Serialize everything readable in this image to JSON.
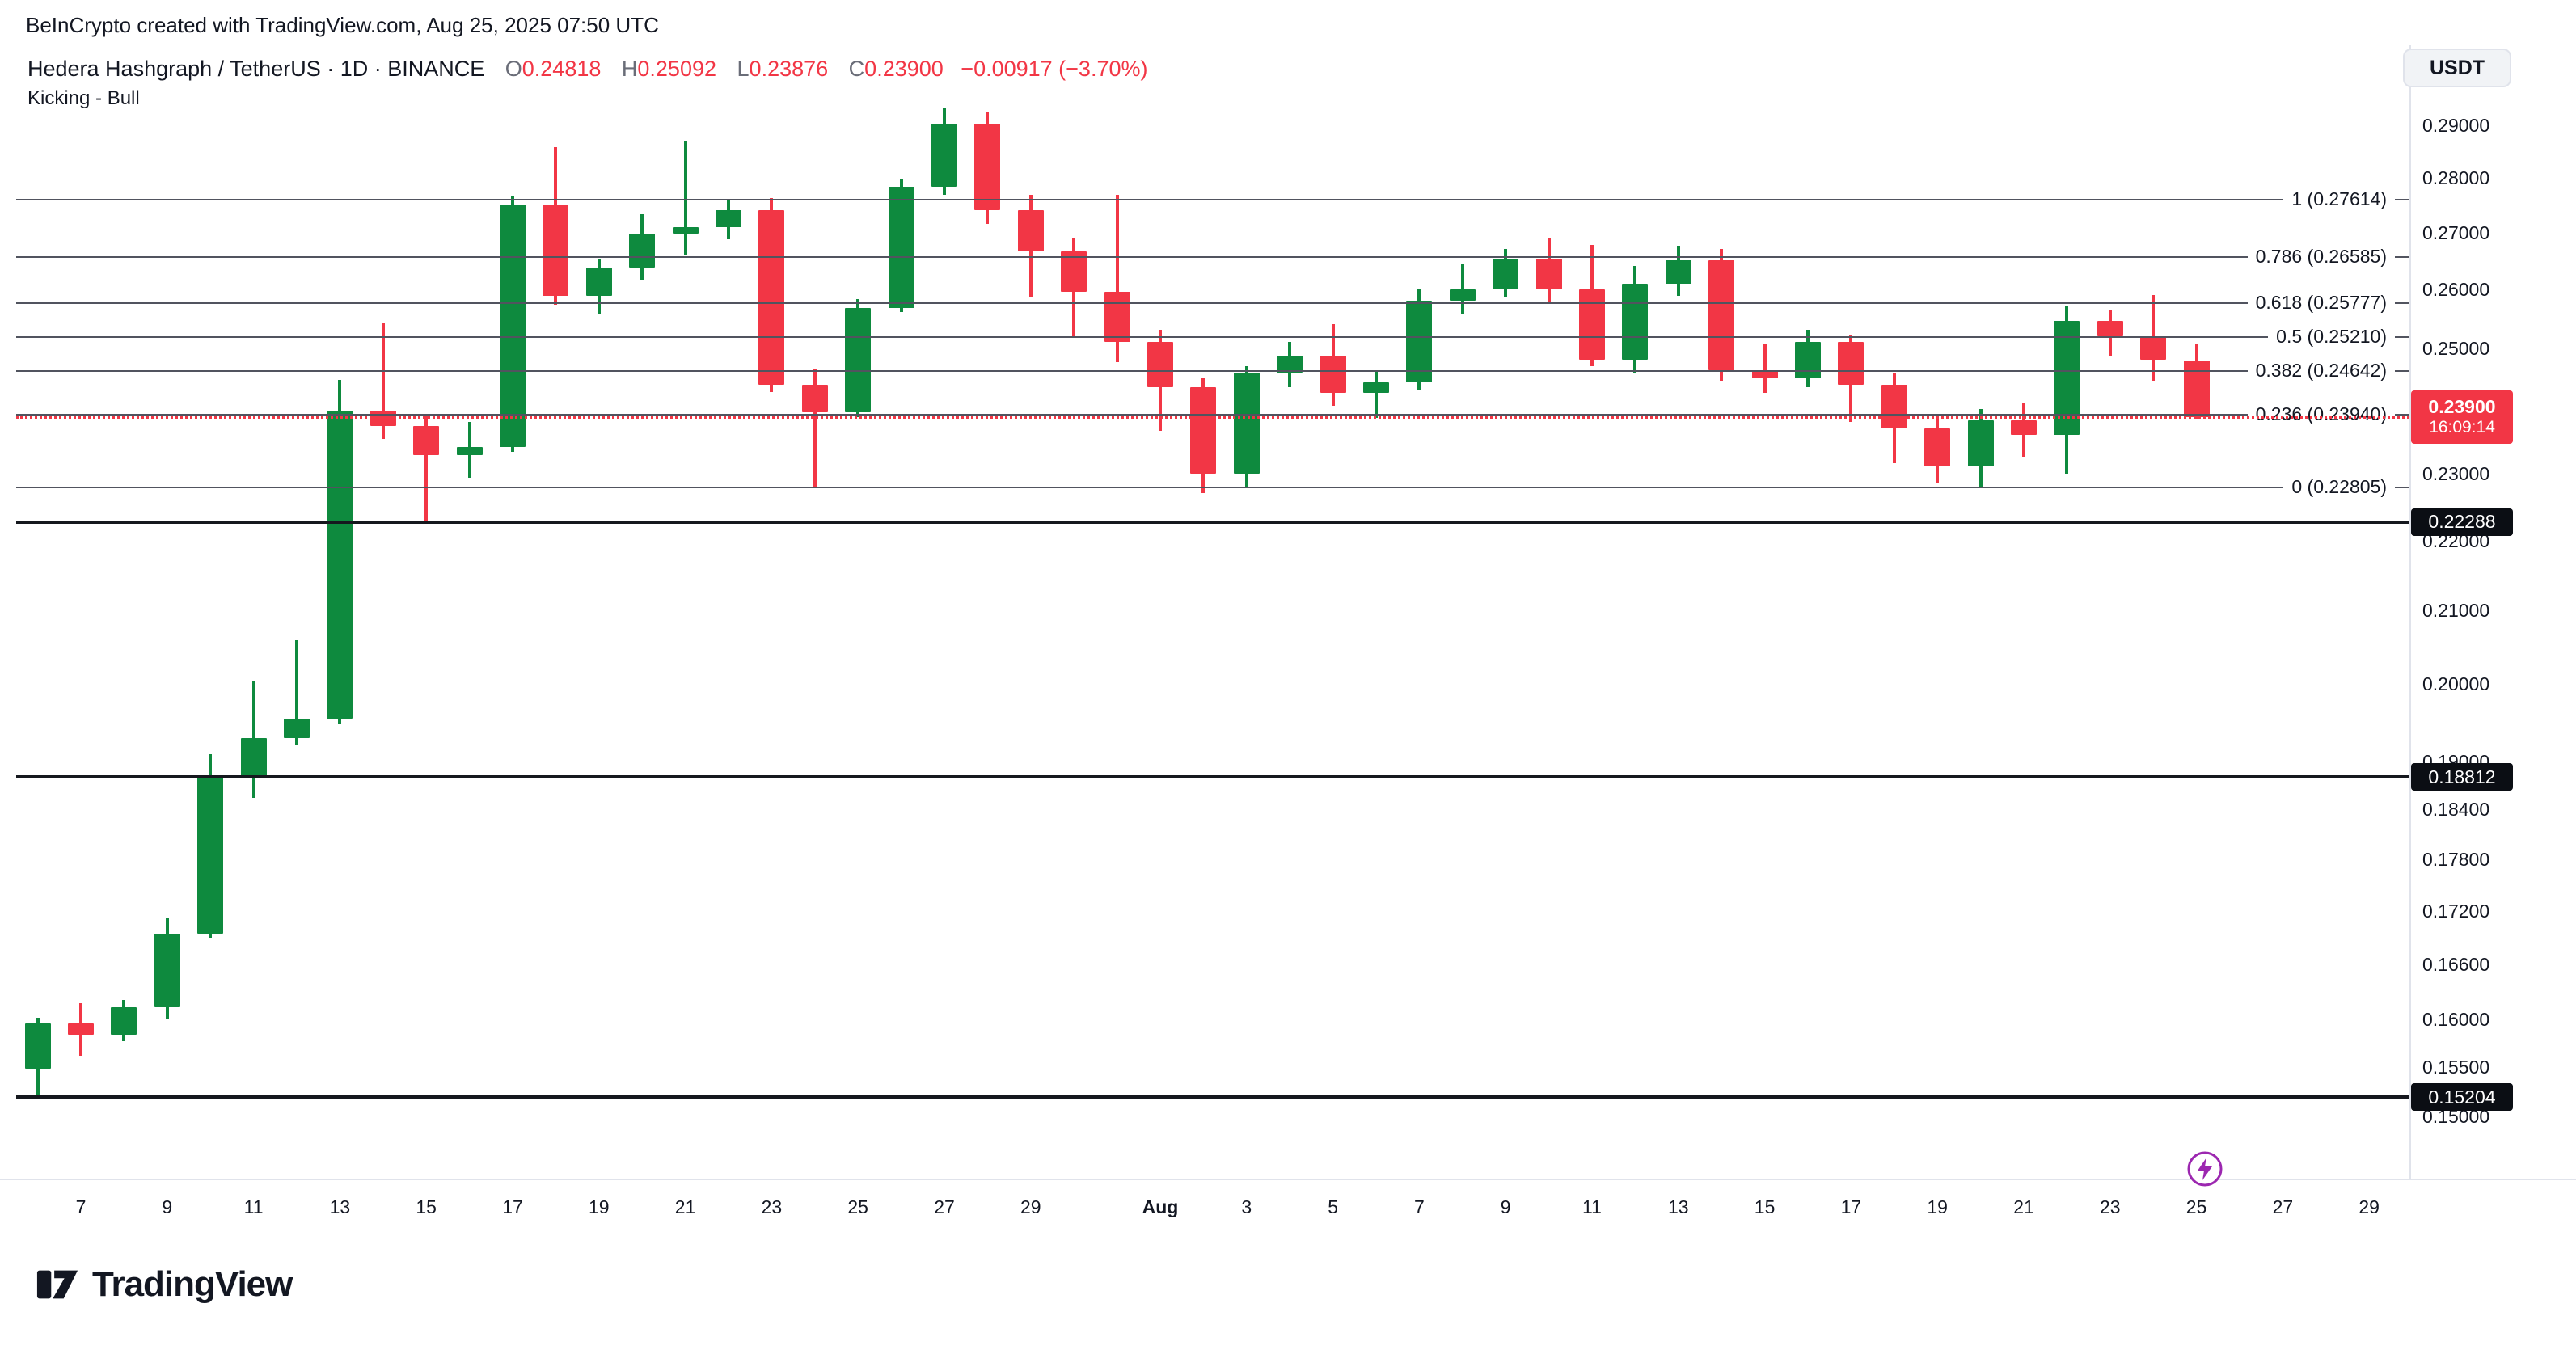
{
  "top_bar": {
    "attribution": "BeInCrypto created with TradingView.com, Aug 25, 2025 07:50 UTC"
  },
  "header": {
    "symbol_line": "Hedera Hashgraph / TetherUS · 1D · BINANCE",
    "ohlc": {
      "o_label": "O",
      "o": "0.24818",
      "h_label": "H",
      "h": "0.25092",
      "l_label": "L",
      "l": "0.23876",
      "c_label": "C",
      "c": "0.23900",
      "change": "−0.00917 (−3.70%)"
    },
    "pattern_label": "Kicking - Bull",
    "currency_button": "USDT"
  },
  "footer": {
    "brand": "TradingView"
  },
  "chart_data": {
    "type": "candlestick",
    "title": "Hedera Hashgraph / TetherUS 1D BINANCE",
    "interval": "1D",
    "scale": "log",
    "price_range_approx": [
      0.148,
      0.296
    ],
    "colors": {
      "up": "#0e8a3e",
      "down": "#f23645",
      "last_price": "#f23645",
      "support": "#15181e",
      "fib": "#51545f",
      "marker": "#9c27b0"
    },
    "candles": [
      {
        "d": "Jul 6",
        "o": 0.1549,
        "h": 0.1603,
        "l": 0.1521,
        "c": 0.1597
      },
      {
        "d": "Jul 7",
        "o": 0.1597,
        "h": 0.1618,
        "l": 0.1563,
        "c": 0.1585
      },
      {
        "d": "Jul 8",
        "o": 0.1585,
        "h": 0.1622,
        "l": 0.1578,
        "c": 0.1614
      },
      {
        "d": "Jul 9",
        "o": 0.1614,
        "h": 0.1712,
        "l": 0.1602,
        "c": 0.1695
      },
      {
        "d": "Jul 10",
        "o": 0.1695,
        "h": 0.191,
        "l": 0.169,
        "c": 0.188
      },
      {
        "d": "Jul 11",
        "o": 0.188,
        "h": 0.2005,
        "l": 0.1855,
        "c": 0.193
      },
      {
        "d": "Jul 12",
        "o": 0.193,
        "h": 0.206,
        "l": 0.1922,
        "c": 0.1955
      },
      {
        "d": "Jul 13",
        "o": 0.1955,
        "h": 0.245,
        "l": 0.1948,
        "c": 0.24
      },
      {
        "d": "Jul 14",
        "o": 0.24,
        "h": 0.2545,
        "l": 0.2355,
        "c": 0.2375
      },
      {
        "d": "Jul 15",
        "o": 0.2375,
        "h": 0.2392,
        "l": 0.223,
        "c": 0.233
      },
      {
        "d": "Jul 16",
        "o": 0.233,
        "h": 0.2382,
        "l": 0.2295,
        "c": 0.2342
      },
      {
        "d": "Jul 17",
        "o": 0.2342,
        "h": 0.2768,
        "l": 0.2335,
        "c": 0.2752
      },
      {
        "d": "Jul 18",
        "o": 0.2752,
        "h": 0.286,
        "l": 0.2575,
        "c": 0.259
      },
      {
        "d": "Jul 19",
        "o": 0.259,
        "h": 0.2655,
        "l": 0.256,
        "c": 0.264
      },
      {
        "d": "Jul 20",
        "o": 0.264,
        "h": 0.2735,
        "l": 0.2618,
        "c": 0.27
      },
      {
        "d": "Jul 21",
        "o": 0.27,
        "h": 0.287,
        "l": 0.2662,
        "c": 0.2712
      },
      {
        "d": "Jul 22",
        "o": 0.2712,
        "h": 0.2762,
        "l": 0.269,
        "c": 0.2742
      },
      {
        "d": "Jul 23",
        "o": 0.2742,
        "h": 0.2765,
        "l": 0.243,
        "c": 0.2442
      },
      {
        "d": "Jul 24",
        "o": 0.2442,
        "h": 0.2468,
        "l": 0.2282,
        "c": 0.2398
      },
      {
        "d": "Jul 25",
        "o": 0.2398,
        "h": 0.2585,
        "l": 0.239,
        "c": 0.257
      },
      {
        "d": "Jul 26",
        "o": 0.257,
        "h": 0.28,
        "l": 0.2562,
        "c": 0.2786
      },
      {
        "d": "Jul 27",
        "o": 0.2786,
        "h": 0.2935,
        "l": 0.277,
        "c": 0.2905
      },
      {
        "d": "Jul 28",
        "o": 0.2905,
        "h": 0.2928,
        "l": 0.2718,
        "c": 0.2742
      },
      {
        "d": "Jul 29",
        "o": 0.2742,
        "h": 0.277,
        "l": 0.2588,
        "c": 0.2668
      },
      {
        "d": "Jul 30",
        "o": 0.2668,
        "h": 0.2692,
        "l": 0.2522,
        "c": 0.2598
      },
      {
        "d": "Jul 31",
        "o": 0.2598,
        "h": 0.277,
        "l": 0.2478,
        "c": 0.2512
      },
      {
        "d": "Aug 1",
        "o": 0.2512,
        "h": 0.2532,
        "l": 0.2368,
        "c": 0.2438
      },
      {
        "d": "Aug 2",
        "o": 0.2438,
        "h": 0.2452,
        "l": 0.2272,
        "c": 0.2302
      },
      {
        "d": "Aug 3",
        "o": 0.2302,
        "h": 0.2472,
        "l": 0.2281,
        "c": 0.2462
      },
      {
        "d": "Aug 4",
        "o": 0.2462,
        "h": 0.2512,
        "l": 0.2438,
        "c": 0.249
      },
      {
        "d": "Aug 5",
        "o": 0.249,
        "h": 0.2542,
        "l": 0.2408,
        "c": 0.2428
      },
      {
        "d": "Aug 6",
        "o": 0.2428,
        "h": 0.2465,
        "l": 0.2388,
        "c": 0.2445
      },
      {
        "d": "Aug 7",
        "o": 0.2445,
        "h": 0.2602,
        "l": 0.2432,
        "c": 0.2582
      },
      {
        "d": "Aug 8",
        "o": 0.2582,
        "h": 0.2645,
        "l": 0.2558,
        "c": 0.2602
      },
      {
        "d": "Aug 9",
        "o": 0.2602,
        "h": 0.2672,
        "l": 0.2588,
        "c": 0.2655
      },
      {
        "d": "Aug 10",
        "o": 0.2655,
        "h": 0.2692,
        "l": 0.2578,
        "c": 0.2602
      },
      {
        "d": "Aug 11",
        "o": 0.2602,
        "h": 0.268,
        "l": 0.2472,
        "c": 0.2482
      },
      {
        "d": "Aug 12",
        "o": 0.2482,
        "h": 0.2642,
        "l": 0.2462,
        "c": 0.2612
      },
      {
        "d": "Aug 13",
        "o": 0.2612,
        "h": 0.2678,
        "l": 0.259,
        "c": 0.2652
      },
      {
        "d": "Aug 14",
        "o": 0.2652,
        "h": 0.2672,
        "l": 0.2448,
        "c": 0.2465
      },
      {
        "d": "Aug 15",
        "o": 0.2465,
        "h": 0.2508,
        "l": 0.2428,
        "c": 0.2452
      },
      {
        "d": "Aug 16",
        "o": 0.2452,
        "h": 0.2532,
        "l": 0.2438,
        "c": 0.2512
      },
      {
        "d": "Aug 17",
        "o": 0.2512,
        "h": 0.2525,
        "l": 0.2382,
        "c": 0.2442
      },
      {
        "d": "Aug 18",
        "o": 0.2442,
        "h": 0.2462,
        "l": 0.2318,
        "c": 0.2372
      },
      {
        "d": "Aug 19",
        "o": 0.2372,
        "h": 0.2392,
        "l": 0.2288,
        "c": 0.2312
      },
      {
        "d": "Aug 20",
        "o": 0.2312,
        "h": 0.2402,
        "l": 0.2282,
        "c": 0.2385
      },
      {
        "d": "Aug 21",
        "o": 0.2385,
        "h": 0.2412,
        "l": 0.2328,
        "c": 0.2362
      },
      {
        "d": "Aug 22",
        "o": 0.2362,
        "h": 0.2572,
        "l": 0.2302,
        "c": 0.2548
      },
      {
        "d": "Aug 23",
        "o": 0.2548,
        "h": 0.2565,
        "l": 0.2488,
        "c": 0.2522
      },
      {
        "d": "Aug 24",
        "o": 0.2522,
        "h": 0.2592,
        "l": 0.2448,
        "c": 0.2482
      },
      {
        "d": "Aug 25",
        "o": 0.24818,
        "h": 0.25092,
        "l": 0.23876,
        "c": 0.239
      }
    ],
    "fib_levels": [
      {
        "label": "1 (0.27614)",
        "p": 0.27614
      },
      {
        "label": "0.786 (0.26585)",
        "p": 0.26585
      },
      {
        "label": "0.618 (0.25777)",
        "p": 0.25777
      },
      {
        "label": "0.5 (0.25210)",
        "p": 0.2521
      },
      {
        "label": "0.382 (0.24642)",
        "p": 0.24642
      },
      {
        "label": "0.236 (0.23940)",
        "p": 0.2394
      },
      {
        "label": "0 (0.22805)",
        "p": 0.22805
      }
    ],
    "support_levels": [
      {
        "label": "0.22288",
        "p": 0.22288
      },
      {
        "label": "0.18812",
        "p": 0.18812
      },
      {
        "label": "0.15204",
        "p": 0.15204
      }
    ],
    "last_price": {
      "label": "0.23900",
      "countdown": "16:09:14",
      "p": 0.239
    },
    "price_ticks": [
      {
        "label": "0.29000",
        "p": 0.29
      },
      {
        "label": "0.28000",
        "p": 0.28
      },
      {
        "label": "0.27000",
        "p": 0.27
      },
      {
        "label": "0.26000",
        "p": 0.26
      },
      {
        "label": "0.25000",
        "p": 0.25
      },
      {
        "label": "0.23000",
        "p": 0.23
      },
      {
        "label": "0.22000",
        "p": 0.22
      },
      {
        "label": "0.21000",
        "p": 0.21
      },
      {
        "label": "0.20000",
        "p": 0.2
      },
      {
        "label": "0.19000",
        "p": 0.19
      },
      {
        "label": "0.18400",
        "p": 0.184
      },
      {
        "label": "0.17800",
        "p": 0.178
      },
      {
        "label": "0.17200",
        "p": 0.172
      },
      {
        "label": "0.16600",
        "p": 0.166
      },
      {
        "label": "0.16000",
        "p": 0.16
      },
      {
        "label": "0.15500",
        "p": 0.155
      },
      {
        "label": "0.15000",
        "p": 0.15
      }
    ],
    "time_ticks": [
      {
        "label": "7",
        "i": 1
      },
      {
        "label": "9",
        "i": 3
      },
      {
        "label": "11",
        "i": 5
      },
      {
        "label": "13",
        "i": 7
      },
      {
        "label": "15",
        "i": 9
      },
      {
        "label": "17",
        "i": 11
      },
      {
        "label": "19",
        "i": 13
      },
      {
        "label": "21",
        "i": 15
      },
      {
        "label": "23",
        "i": 17
      },
      {
        "label": "25",
        "i": 19
      },
      {
        "label": "27",
        "i": 21
      },
      {
        "label": "29",
        "i": 23
      },
      {
        "label": "Aug",
        "i": 26,
        "bold": true
      },
      {
        "label": "3",
        "i": 28
      },
      {
        "label": "5",
        "i": 30
      },
      {
        "label": "7",
        "i": 32
      },
      {
        "label": "9",
        "i": 34
      },
      {
        "label": "11",
        "i": 36
      },
      {
        "label": "13",
        "i": 38
      },
      {
        "label": "15",
        "i": 40
      },
      {
        "label": "17",
        "i": 42
      },
      {
        "label": "19",
        "i": 44
      },
      {
        "label": "21",
        "i": 46
      },
      {
        "label": "23",
        "i": 48
      },
      {
        "label": "25",
        "i": 50
      },
      {
        "label": "27",
        "i": 52
      },
      {
        "label": "29",
        "i": 54
      }
    ],
    "marker": {
      "name": "lightning",
      "i": 50
    }
  }
}
